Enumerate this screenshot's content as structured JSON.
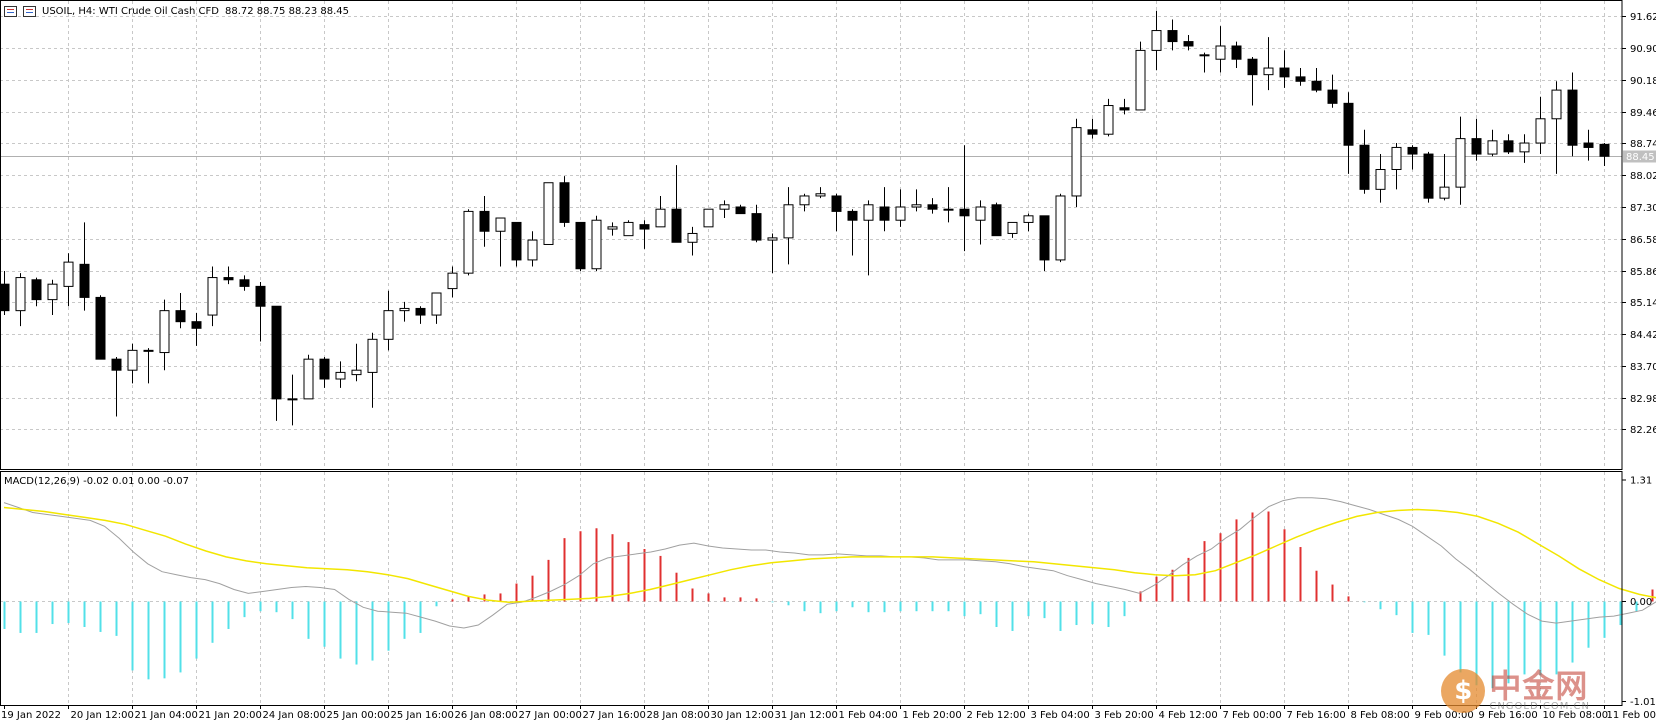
{
  "header": {
    "symbol_title": "USOIL, H4:  WTI Crude Oil Cash CFD",
    "ohlc": "88.72 88.75 88.23 88.45"
  },
  "macd_header": "MACD(12,26,9) -0.02 0.01 0.00 -0.07",
  "logo": {
    "text": "中金网",
    "sub": "CNGOLD.COM.CN"
  },
  "colors": {
    "bull_fill": "#ffffff",
    "bear_fill": "#000000",
    "grid": "#c8c8c8",
    "signal_line": "#f2e600",
    "macd_line": "#a0a0a0",
    "hist_positive": "#e03030",
    "hist_negative": "#52e0e8",
    "current_price_line": "#b0b0b0"
  },
  "chart_data": [
    {
      "type": "candlestick",
      "title": "USOIL, H4:  WTI Crude Oil Cash CFD",
      "y_ticks": [
        "91.62",
        "90.90",
        "90.18",
        "89.46",
        "88.74",
        "88.02",
        "87.30",
        "86.58",
        "85.86",
        "85.14",
        "84.42",
        "83.70",
        "82.98",
        "82.26"
      ],
      "ylim": [
        81.36,
        91.97
      ],
      "current_price": "88.45",
      "x_labels": [
        "19 Jan 2022",
        "20 Jan 12:00",
        "21 Jan 04:00",
        "21 Jan 20:00",
        "24 Jan 08:00",
        "25 Jan 00:00",
        "25 Jan 16:00",
        "26 Jan 08:00",
        "27 Jan 00:00",
        "27 Jan 16:00",
        "28 Jan 08:00",
        "30 Jan 12:00",
        "31 Jan 12:00",
        "1 Feb 04:00",
        "1 Feb 20:00",
        "2 Feb 12:00",
        "3 Feb 04:00",
        "3 Feb 20:00",
        "4 Feb 12:00",
        "7 Feb 00:00",
        "7 Feb 16:00",
        "8 Feb 08:00",
        "9 Feb 00:00",
        "9 Feb 16:00",
        "10 Feb 08:00",
        "11 Feb 00:00"
      ],
      "grid": true,
      "candles": [
        {
          "o": 85.55,
          "h": 85.85,
          "l": 84.85,
          "c": 84.95
        },
        {
          "o": 84.95,
          "h": 85.8,
          "l": 84.6,
          "c": 85.7
        },
        {
          "o": 85.65,
          "h": 85.7,
          "l": 85.05,
          "c": 85.2
        },
        {
          "o": 85.2,
          "h": 85.65,
          "l": 84.85,
          "c": 85.55
        },
        {
          "o": 85.5,
          "h": 86.25,
          "l": 85.05,
          "c": 86.05
        },
        {
          "o": 86.0,
          "h": 86.95,
          "l": 84.95,
          "c": 85.25
        },
        {
          "o": 85.25,
          "h": 85.3,
          "l": 83.85,
          "c": 83.85
        },
        {
          "o": 83.85,
          "h": 83.9,
          "l": 82.55,
          "c": 83.6
        },
        {
          "o": 83.6,
          "h": 84.2,
          "l": 83.3,
          "c": 84.05
        },
        {
          "o": 84.05,
          "h": 84.1,
          "l": 83.3,
          "c": 84.05
        },
        {
          "o": 84.0,
          "h": 85.2,
          "l": 83.6,
          "c": 84.95
        },
        {
          "o": 84.95,
          "h": 85.35,
          "l": 84.55,
          "c": 84.7
        },
        {
          "o": 84.7,
          "h": 84.9,
          "l": 84.15,
          "c": 84.55
        },
        {
          "o": 84.85,
          "h": 85.95,
          "l": 84.6,
          "c": 85.7
        },
        {
          "o": 85.7,
          "h": 85.95,
          "l": 85.55,
          "c": 85.65
        },
        {
          "o": 85.65,
          "h": 85.75,
          "l": 85.4,
          "c": 85.5
        },
        {
          "o": 85.5,
          "h": 85.6,
          "l": 84.25,
          "c": 85.05
        },
        {
          "o": 85.05,
          "h": 85.05,
          "l": 82.45,
          "c": 82.95
        },
        {
          "o": 82.95,
          "h": 83.5,
          "l": 82.35,
          "c": 82.95
        },
        {
          "o": 82.95,
          "h": 83.95,
          "l": 82.95,
          "c": 83.85
        },
        {
          "o": 83.85,
          "h": 83.9,
          "l": 83.2,
          "c": 83.4
        },
        {
          "o": 83.4,
          "h": 83.8,
          "l": 83.2,
          "c": 83.55
        },
        {
          "o": 83.5,
          "h": 84.2,
          "l": 83.35,
          "c": 83.6
        },
        {
          "o": 83.55,
          "h": 84.45,
          "l": 82.75,
          "c": 84.3
        },
        {
          "o": 84.3,
          "h": 85.4,
          "l": 84.05,
          "c": 84.95
        },
        {
          "o": 84.95,
          "h": 85.15,
          "l": 84.7,
          "c": 85.0
        },
        {
          "o": 85.0,
          "h": 85.05,
          "l": 84.65,
          "c": 84.85
        },
        {
          "o": 84.85,
          "h": 85.3,
          "l": 84.65,
          "c": 85.35
        },
        {
          "o": 85.45,
          "h": 85.95,
          "l": 85.25,
          "c": 85.8
        },
        {
          "o": 85.8,
          "h": 87.25,
          "l": 85.75,
          "c": 87.2
        },
        {
          "o": 87.2,
          "h": 87.55,
          "l": 86.4,
          "c": 86.75
        },
        {
          "o": 86.75,
          "h": 87.05,
          "l": 85.95,
          "c": 87.05
        },
        {
          "o": 86.95,
          "h": 86.95,
          "l": 85.95,
          "c": 86.1
        },
        {
          "o": 86.1,
          "h": 86.75,
          "l": 85.95,
          "c": 86.55
        },
        {
          "o": 86.45,
          "h": 87.85,
          "l": 86.45,
          "c": 87.85
        },
        {
          "o": 87.85,
          "h": 88.0,
          "l": 86.85,
          "c": 86.95
        },
        {
          "o": 86.95,
          "h": 86.95,
          "l": 85.85,
          "c": 85.9
        },
        {
          "o": 85.9,
          "h": 87.1,
          "l": 85.85,
          "c": 87.0
        },
        {
          "o": 86.8,
          "h": 86.95,
          "l": 86.65,
          "c": 86.85
        },
        {
          "o": 86.65,
          "h": 87.0,
          "l": 86.65,
          "c": 86.95
        },
        {
          "o": 86.9,
          "h": 87.0,
          "l": 86.35,
          "c": 86.8
        },
        {
          "o": 86.85,
          "h": 87.55,
          "l": 86.85,
          "c": 87.25
        },
        {
          "o": 87.25,
          "h": 88.25,
          "l": 86.55,
          "c": 86.5
        },
        {
          "o": 86.5,
          "h": 86.85,
          "l": 86.2,
          "c": 86.7
        },
        {
          "o": 86.85,
          "h": 87.25,
          "l": 86.85,
          "c": 87.25
        },
        {
          "o": 87.25,
          "h": 87.45,
          "l": 87.05,
          "c": 87.35
        },
        {
          "o": 87.3,
          "h": 87.35,
          "l": 87.15,
          "c": 87.15
        },
        {
          "o": 87.15,
          "h": 87.35,
          "l": 86.5,
          "c": 86.55
        },
        {
          "o": 86.55,
          "h": 86.7,
          "l": 85.8,
          "c": 86.6
        },
        {
          "o": 86.6,
          "h": 87.75,
          "l": 86.0,
          "c": 87.35
        },
        {
          "o": 87.35,
          "h": 87.6,
          "l": 87.2,
          "c": 87.55
        },
        {
          "o": 87.55,
          "h": 87.75,
          "l": 87.5,
          "c": 87.6
        },
        {
          "o": 87.55,
          "h": 87.6,
          "l": 86.75,
          "c": 87.2
        },
        {
          "o": 87.2,
          "h": 87.25,
          "l": 86.2,
          "c": 87.0
        },
        {
          "o": 87.0,
          "h": 87.45,
          "l": 85.75,
          "c": 87.35
        },
        {
          "o": 87.3,
          "h": 87.75,
          "l": 86.75,
          "c": 87.0
        },
        {
          "o": 87.0,
          "h": 87.7,
          "l": 86.85,
          "c": 87.3
        },
        {
          "o": 87.3,
          "h": 87.7,
          "l": 87.2,
          "c": 87.35
        },
        {
          "o": 87.35,
          "h": 87.5,
          "l": 87.15,
          "c": 87.25
        },
        {
          "o": 87.25,
          "h": 87.75,
          "l": 86.95,
          "c": 87.25
        },
        {
          "o": 87.25,
          "h": 88.7,
          "l": 86.3,
          "c": 87.1
        },
        {
          "o": 87.0,
          "h": 87.45,
          "l": 86.45,
          "c": 87.3
        },
        {
          "o": 87.35,
          "h": 87.4,
          "l": 86.65,
          "c": 86.65
        },
        {
          "o": 86.7,
          "h": 86.95,
          "l": 86.6,
          "c": 86.95
        },
        {
          "o": 86.95,
          "h": 87.15,
          "l": 86.75,
          "c": 87.1
        },
        {
          "o": 87.1,
          "h": 87.1,
          "l": 85.85,
          "c": 86.1
        },
        {
          "o": 86.1,
          "h": 87.6,
          "l": 86.05,
          "c": 87.55
        },
        {
          "o": 87.55,
          "h": 89.3,
          "l": 87.3,
          "c": 89.1
        },
        {
          "o": 89.05,
          "h": 89.3,
          "l": 88.85,
          "c": 88.95
        },
        {
          "o": 88.95,
          "h": 89.75,
          "l": 88.9,
          "c": 89.6
        },
        {
          "o": 89.55,
          "h": 89.75,
          "l": 89.4,
          "c": 89.5
        },
        {
          "o": 89.5,
          "h": 91.05,
          "l": 89.5,
          "c": 90.85
        },
        {
          "o": 90.85,
          "h": 91.75,
          "l": 90.4,
          "c": 91.3
        },
        {
          "o": 91.3,
          "h": 91.55,
          "l": 90.85,
          "c": 91.05
        },
        {
          "o": 91.05,
          "h": 91.2,
          "l": 90.85,
          "c": 90.95
        },
        {
          "o": 90.75,
          "h": 90.8,
          "l": 90.35,
          "c": 90.75
        },
        {
          "o": 90.65,
          "h": 91.4,
          "l": 90.35,
          "c": 90.95
        },
        {
          "o": 90.95,
          "h": 91.05,
          "l": 90.45,
          "c": 90.65
        },
        {
          "o": 90.65,
          "h": 90.7,
          "l": 89.6,
          "c": 90.3
        },
        {
          "o": 90.3,
          "h": 91.15,
          "l": 89.95,
          "c": 90.45
        },
        {
          "o": 90.45,
          "h": 90.85,
          "l": 90.0,
          "c": 90.25
        },
        {
          "o": 90.25,
          "h": 90.45,
          "l": 90.05,
          "c": 90.15
        },
        {
          "o": 90.15,
          "h": 90.45,
          "l": 89.9,
          "c": 89.95
        },
        {
          "o": 89.95,
          "h": 90.3,
          "l": 89.55,
          "c": 89.65
        },
        {
          "o": 89.65,
          "h": 89.9,
          "l": 88.05,
          "c": 88.7
        },
        {
          "o": 88.7,
          "h": 89.05,
          "l": 87.6,
          "c": 87.7
        },
        {
          "o": 87.7,
          "h": 88.5,
          "l": 87.4,
          "c": 88.15
        },
        {
          "o": 88.15,
          "h": 88.75,
          "l": 87.7,
          "c": 88.65
        },
        {
          "o": 88.65,
          "h": 88.7,
          "l": 88.15,
          "c": 88.5
        },
        {
          "o": 88.5,
          "h": 88.55,
          "l": 87.4,
          "c": 87.5
        },
        {
          "o": 87.5,
          "h": 88.5,
          "l": 87.45,
          "c": 87.75
        },
        {
          "o": 87.75,
          "h": 89.35,
          "l": 87.35,
          "c": 88.85
        },
        {
          "o": 88.85,
          "h": 89.3,
          "l": 88.35,
          "c": 88.5
        },
        {
          "o": 88.5,
          "h": 89.05,
          "l": 88.45,
          "c": 88.8
        },
        {
          "o": 88.8,
          "h": 88.95,
          "l": 88.5,
          "c": 88.55
        },
        {
          "o": 88.55,
          "h": 88.95,
          "l": 88.3,
          "c": 88.75
        },
        {
          "o": 88.75,
          "h": 89.8,
          "l": 88.5,
          "c": 89.3
        },
        {
          "o": 89.3,
          "h": 90.15,
          "l": 88.05,
          "c": 89.95
        },
        {
          "o": 89.95,
          "h": 90.35,
          "l": 88.45,
          "c": 88.7
        },
        {
          "o": 88.75,
          "h": 89.05,
          "l": 88.35,
          "c": 88.65
        },
        {
          "o": 88.72,
          "h": 88.75,
          "l": 88.23,
          "c": 88.45
        }
      ]
    },
    {
      "type": "macd",
      "title": "MACD(12,26,9) -0.02 0.01 0.00 -0.07",
      "y_ticks": [
        "1.31",
        "0.00",
        "-1.01"
      ],
      "ylim": [
        -1.05,
        1.31
      ],
      "macd_line": [
        1.0,
        0.95,
        0.9,
        0.88,
        0.86,
        0.84,
        0.82,
        0.76,
        0.64,
        0.5,
        0.38,
        0.3,
        0.27,
        0.24,
        0.22,
        0.18,
        0.12,
        0.08,
        0.1,
        0.12,
        0.14,
        0.15,
        0.14,
        0.12,
        0.02,
        -0.06,
        -0.1,
        -0.11,
        -0.12,
        -0.16,
        -0.2,
        -0.25,
        -0.27,
        -0.24,
        -0.14,
        -0.03,
        -0.01,
        0.04,
        0.1,
        0.17,
        0.26,
        0.38,
        0.44,
        0.46,
        0.48,
        0.5,
        0.53,
        0.57,
        0.59,
        0.56,
        0.54,
        0.53,
        0.52,
        0.52,
        0.5,
        0.49,
        0.47,
        0.47,
        0.48,
        0.47,
        0.46,
        0.46,
        0.45,
        0.45,
        0.44,
        0.42,
        0.42,
        0.42,
        0.41,
        0.4,
        0.38,
        0.35,
        0.33,
        0.31,
        0.26,
        0.22,
        0.18,
        0.15,
        0.12,
        0.08,
        0.16,
        0.26,
        0.37,
        0.46,
        0.53,
        0.64,
        0.73,
        0.85,
        0.96,
        1.02,
        1.05,
        1.05,
        1.04,
        1.01,
        0.97,
        0.93,
        0.88,
        0.83,
        0.76,
        0.66,
        0.56,
        0.43,
        0.32,
        0.2,
        0.08,
        -0.03,
        -0.13,
        -0.2,
        -0.22,
        -0.2,
        -0.18,
        -0.16,
        -0.15,
        -0.12,
        -0.09,
        0.0,
        0.03,
        0.02,
        -0.02
      ],
      "signal_line": [
        0.95,
        0.93,
        0.91,
        0.88,
        0.85,
        0.82,
        0.78,
        0.72,
        0.66,
        0.58,
        0.51,
        0.45,
        0.41,
        0.38,
        0.36,
        0.34,
        0.33,
        0.32,
        0.3,
        0.27,
        0.23,
        0.17,
        0.11,
        0.05,
        0.01,
        -0.01,
        0.0,
        0.01,
        0.02,
        0.03,
        0.05,
        0.08,
        0.12,
        0.17,
        0.22,
        0.27,
        0.32,
        0.36,
        0.39,
        0.41,
        0.43,
        0.44,
        0.45,
        0.45,
        0.45,
        0.45,
        0.45,
        0.44,
        0.43,
        0.42,
        0.41,
        0.4,
        0.38,
        0.36,
        0.34,
        0.32,
        0.29,
        0.27,
        0.26,
        0.27,
        0.31,
        0.39,
        0.47,
        0.56,
        0.65,
        0.73,
        0.8,
        0.86,
        0.9,
        0.92,
        0.93,
        0.92,
        0.9,
        0.86,
        0.79,
        0.7,
        0.58,
        0.46,
        0.33,
        0.22,
        0.13,
        0.07,
        0.03,
        0.01,
        0.0
      ],
      "histogram": [
        -0.28,
        -0.32,
        -0.32,
        -0.23,
        -0.22,
        -0.26,
        -0.31,
        -0.35,
        -0.7,
        -0.79,
        -0.78,
        -0.72,
        -0.58,
        -0.42,
        -0.28,
        -0.16,
        -0.1,
        -0.11,
        -0.18,
        -0.38,
        -0.46,
        -0.58,
        -0.64,
        -0.6,
        -0.5,
        -0.38,
        -0.32,
        -0.05,
        0.02,
        0.05,
        0.07,
        0.08,
        0.18,
        0.26,
        0.42,
        0.64,
        0.71,
        0.74,
        0.68,
        0.6,
        0.53,
        0.46,
        0.29,
        0.13,
        0.08,
        0.04,
        0.04,
        0.03,
        -0.01,
        -0.04,
        -0.1,
        -0.12,
        -0.1,
        -0.06,
        -0.11,
        -0.11,
        -0.1,
        -0.1,
        -0.1,
        -0.1,
        -0.15,
        -0.13,
        -0.26,
        -0.3,
        -0.15,
        -0.17,
        -0.3,
        -0.24,
        -0.23,
        -0.26,
        -0.15,
        0.1,
        0.25,
        0.32,
        0.44,
        0.61,
        0.69,
        0.83,
        0.9,
        0.91,
        0.73,
        0.55,
        0.31,
        0.17,
        0.05,
        -0.01,
        -0.08,
        -0.14,
        -0.32,
        -0.34,
        -0.55,
        -0.72,
        -0.85,
        -0.88,
        -0.83,
        -0.74,
        -0.75,
        -0.74,
        -0.62,
        -0.47,
        -0.37,
        -0.24,
        -0.1,
        0.12,
        0.04,
        0.05,
        -0.02
      ]
    }
  ]
}
